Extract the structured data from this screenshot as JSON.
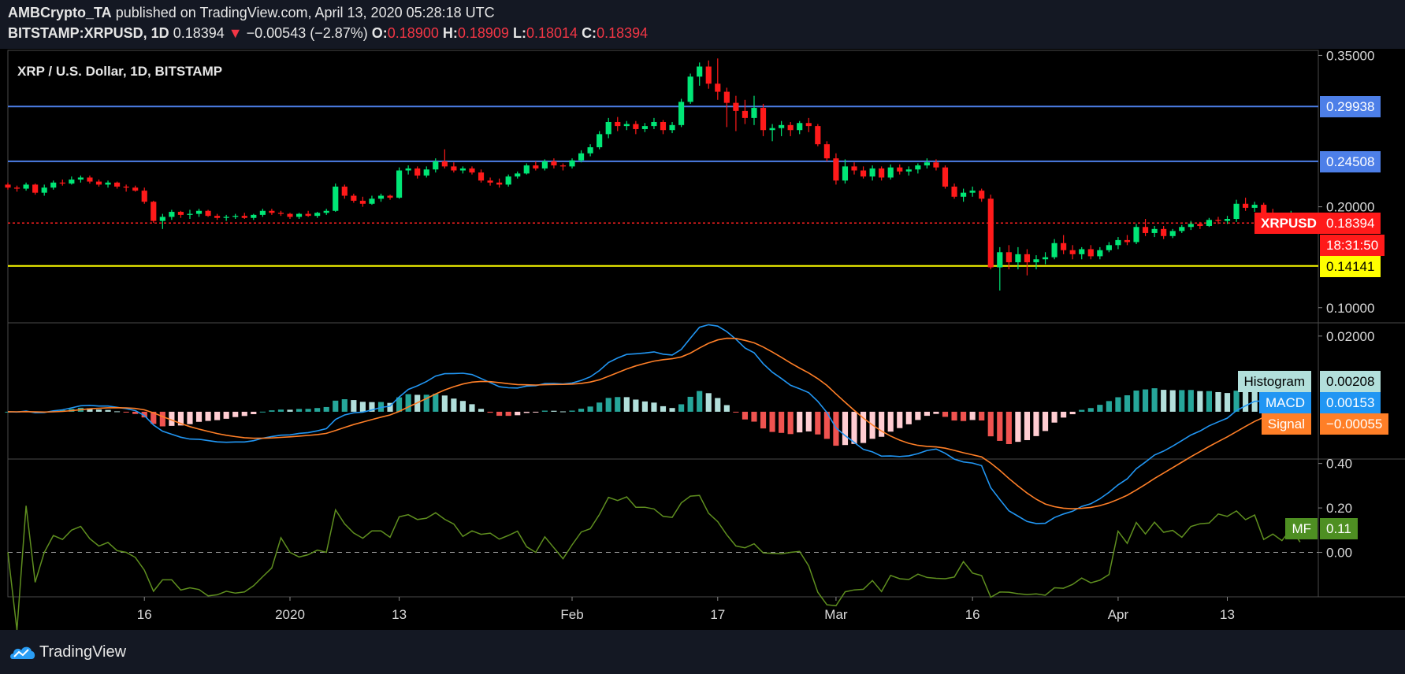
{
  "header": {
    "publisher": "AMBCrypto_TA",
    "published_text": "published on TradingView.com, April 13, 2020 05:28:18 UTC",
    "symbol": "BITSTAMP:XRPUSD, 1D",
    "last": "0.18394",
    "change_arrow": "▼",
    "change": "−0.00543 (−2.87%)",
    "o_label": "O:",
    "o": "0.18900",
    "h_label": "H:",
    "h": "0.18909",
    "l_label": "L:",
    "l": "0.18014",
    "c_label": "C:",
    "c": "0.18394"
  },
  "footer": {
    "brand": "TradingView",
    "logo_icon": "tradingview-cloud-icon"
  },
  "colors": {
    "background": "#000000",
    "up": "#00e676",
    "down": "#ff1a1a",
    "resistance": "#4d7fe8",
    "support": "#ffff00",
    "macd": "#2196f3",
    "signal": "#ff7f27",
    "hist_up_dark": "#26a69a",
    "hist_up_light": "#b2dfdb",
    "hist_down_dark": "#ef5350",
    "hist_down_light": "#ffcdd2",
    "mf_line": "#5f8f1f"
  },
  "chart_data": {
    "type": "candlestick",
    "title": "XRP / U.S. Dollar, 1D, BITSTAMP",
    "x_tick_labels": [
      "16",
      "2020",
      "13",
      "Feb",
      "17",
      "Mar",
      "16",
      "Apr",
      "13"
    ],
    "x_ticks": [
      "2019-12-16",
      "2020-01-01",
      "2020-01-13",
      "2020-02-01",
      "2020-02-17",
      "2020-03-01",
      "2020-03-16",
      "2020-04-01",
      "2020-04-13"
    ],
    "x_range": [
      "2019-12-01",
      "2020-04-23"
    ],
    "price_axis": {
      "ylim": [
        0.085,
        0.355
      ],
      "ticks": [
        "0.35000",
        "0.20000",
        "0.10000"
      ],
      "tick_values": [
        0.35,
        0.2,
        0.1
      ]
    },
    "horizontal_lines": [
      {
        "label": "0.29938",
        "value": 0.29938,
        "color": "resistance"
      },
      {
        "label": "0.24508",
        "value": 0.24508,
        "color": "resistance"
      },
      {
        "label": "0.14141",
        "value": 0.14141,
        "color": "support"
      }
    ],
    "last_price": {
      "symbol": "XRPUSD",
      "value": 0.18394,
      "label": "0.18394",
      "countdown": "18:31:50"
    },
    "candles_start_date": "2019-12-01",
    "ohlc": [
      [
        0.222,
        0.224,
        0.217,
        0.219
      ],
      [
        0.219,
        0.221,
        0.215,
        0.218
      ],
      [
        0.218,
        0.224,
        0.216,
        0.222
      ],
      [
        0.222,
        0.223,
        0.212,
        0.214
      ],
      [
        0.214,
        0.222,
        0.211,
        0.219
      ],
      [
        0.219,
        0.226,
        0.217,
        0.224
      ],
      [
        0.224,
        0.227,
        0.221,
        0.223
      ],
      [
        0.223,
        0.23,
        0.222,
        0.227
      ],
      [
        0.227,
        0.231,
        0.224,
        0.229
      ],
      [
        0.229,
        0.231,
        0.223,
        0.225
      ],
      [
        0.225,
        0.227,
        0.22,
        0.222
      ],
      [
        0.222,
        0.226,
        0.219,
        0.224
      ],
      [
        0.224,
        0.225,
        0.218,
        0.22
      ],
      [
        0.22,
        0.222,
        0.215,
        0.219
      ],
      [
        0.219,
        0.221,
        0.215,
        0.216
      ],
      [
        0.216,
        0.219,
        0.203,
        0.205
      ],
      [
        0.205,
        0.206,
        0.184,
        0.186
      ],
      [
        0.186,
        0.193,
        0.178,
        0.19
      ],
      [
        0.19,
        0.197,
        0.187,
        0.195
      ],
      [
        0.195,
        0.196,
        0.189,
        0.192
      ],
      [
        0.192,
        0.197,
        0.188,
        0.193
      ],
      [
        0.193,
        0.198,
        0.19,
        0.196
      ],
      [
        0.196,
        0.197,
        0.19,
        0.191
      ],
      [
        0.191,
        0.193,
        0.187,
        0.189
      ],
      [
        0.189,
        0.192,
        0.186,
        0.19
      ],
      [
        0.19,
        0.193,
        0.188,
        0.191
      ],
      [
        0.191,
        0.194,
        0.188,
        0.189
      ],
      [
        0.189,
        0.193,
        0.187,
        0.192
      ],
      [
        0.192,
        0.198,
        0.19,
        0.196
      ],
      [
        0.196,
        0.198,
        0.192,
        0.194
      ],
      [
        0.194,
        0.196,
        0.191,
        0.193
      ],
      [
        0.193,
        0.194,
        0.188,
        0.19
      ],
      [
        0.19,
        0.194,
        0.188,
        0.193
      ],
      [
        0.193,
        0.196,
        0.19,
        0.191
      ],
      [
        0.191,
        0.195,
        0.189,
        0.194
      ],
      [
        0.194,
        0.198,
        0.192,
        0.196
      ],
      [
        0.196,
        0.223,
        0.195,
        0.22
      ],
      [
        0.22,
        0.222,
        0.208,
        0.211
      ],
      [
        0.211,
        0.213,
        0.204,
        0.206
      ],
      [
        0.206,
        0.21,
        0.2,
        0.203
      ],
      [
        0.203,
        0.211,
        0.202,
        0.208
      ],
      [
        0.208,
        0.213,
        0.205,
        0.211
      ],
      [
        0.211,
        0.212,
        0.207,
        0.209
      ],
      [
        0.209,
        0.239,
        0.208,
        0.236
      ],
      [
        0.236,
        0.241,
        0.232,
        0.238
      ],
      [
        0.238,
        0.24,
        0.228,
        0.231
      ],
      [
        0.231,
        0.24,
        0.229,
        0.237
      ],
      [
        0.237,
        0.248,
        0.234,
        0.245
      ],
      [
        0.245,
        0.257,
        0.238,
        0.24
      ],
      [
        0.24,
        0.244,
        0.234,
        0.236
      ],
      [
        0.236,
        0.24,
        0.233,
        0.238
      ],
      [
        0.238,
        0.24,
        0.232,
        0.234
      ],
      [
        0.234,
        0.237,
        0.224,
        0.226
      ],
      [
        0.226,
        0.229,
        0.221,
        0.224
      ],
      [
        0.224,
        0.228,
        0.219,
        0.222
      ],
      [
        0.222,
        0.232,
        0.22,
        0.23
      ],
      [
        0.23,
        0.235,
        0.228,
        0.233
      ],
      [
        0.233,
        0.243,
        0.232,
        0.241
      ],
      [
        0.241,
        0.245,
        0.236,
        0.238
      ],
      [
        0.238,
        0.247,
        0.236,
        0.245
      ],
      [
        0.245,
        0.248,
        0.238,
        0.241
      ],
      [
        0.241,
        0.243,
        0.236,
        0.24
      ],
      [
        0.24,
        0.248,
        0.238,
        0.246
      ],
      [
        0.246,
        0.256,
        0.244,
        0.253
      ],
      [
        0.253,
        0.262,
        0.25,
        0.259
      ],
      [
        0.259,
        0.275,
        0.257,
        0.272
      ],
      [
        0.272,
        0.288,
        0.268,
        0.284
      ],
      [
        0.284,
        0.289,
        0.275,
        0.28
      ],
      [
        0.28,
        0.285,
        0.276,
        0.282
      ],
      [
        0.282,
        0.285,
        0.272,
        0.277
      ],
      [
        0.277,
        0.283,
        0.274,
        0.28
      ],
      [
        0.28,
        0.288,
        0.277,
        0.284
      ],
      [
        0.284,
        0.286,
        0.272,
        0.276
      ],
      [
        0.276,
        0.284,
        0.273,
        0.281
      ],
      [
        0.281,
        0.307,
        0.279,
        0.304
      ],
      [
        0.304,
        0.332,
        0.302,
        0.329
      ],
      [
        0.329,
        0.343,
        0.32,
        0.339
      ],
      [
        0.339,
        0.345,
        0.317,
        0.322
      ],
      [
        0.322,
        0.347,
        0.306,
        0.314
      ],
      [
        0.314,
        0.318,
        0.279,
        0.303
      ],
      [
        0.303,
        0.31,
        0.275,
        0.295
      ],
      [
        0.295,
        0.306,
        0.282,
        0.288
      ],
      [
        0.288,
        0.31,
        0.281,
        0.298
      ],
      [
        0.298,
        0.302,
        0.27,
        0.276
      ],
      [
        0.276,
        0.282,
        0.265,
        0.278
      ],
      [
        0.278,
        0.285,
        0.27,
        0.281
      ],
      [
        0.281,
        0.284,
        0.27,
        0.276
      ],
      [
        0.276,
        0.285,
        0.272,
        0.283
      ],
      [
        0.283,
        0.288,
        0.274,
        0.28
      ],
      [
        0.28,
        0.282,
        0.26,
        0.262
      ],
      [
        0.262,
        0.265,
        0.245,
        0.248
      ],
      [
        0.248,
        0.253,
        0.222,
        0.226
      ],
      [
        0.226,
        0.247,
        0.223,
        0.24
      ],
      [
        0.24,
        0.244,
        0.232,
        0.236
      ],
      [
        0.236,
        0.24,
        0.228,
        0.23
      ],
      [
        0.23,
        0.241,
        0.226,
        0.238
      ],
      [
        0.238,
        0.24,
        0.226,
        0.229
      ],
      [
        0.229,
        0.242,
        0.227,
        0.239
      ],
      [
        0.239,
        0.242,
        0.232,
        0.235
      ],
      [
        0.235,
        0.24,
        0.231,
        0.237
      ],
      [
        0.237,
        0.243,
        0.233,
        0.241
      ],
      [
        0.241,
        0.248,
        0.238,
        0.244
      ],
      [
        0.244,
        0.247,
        0.236,
        0.239
      ],
      [
        0.239,
        0.241,
        0.218,
        0.22
      ],
      [
        0.22,
        0.223,
        0.208,
        0.21
      ],
      [
        0.21,
        0.218,
        0.205,
        0.214
      ],
      [
        0.214,
        0.22,
        0.21,
        0.216
      ],
      [
        0.216,
        0.218,
        0.205,
        0.208
      ],
      [
        0.208,
        0.212,
        0.138,
        0.14
      ],
      [
        0.14,
        0.16,
        0.117,
        0.155
      ],
      [
        0.155,
        0.162,
        0.138,
        0.145
      ],
      [
        0.145,
        0.16,
        0.138,
        0.153
      ],
      [
        0.153,
        0.158,
        0.132,
        0.145
      ],
      [
        0.145,
        0.152,
        0.138,
        0.148
      ],
      [
        0.148,
        0.155,
        0.143,
        0.15
      ],
      [
        0.15,
        0.168,
        0.148,
        0.164
      ],
      [
        0.164,
        0.172,
        0.153,
        0.157
      ],
      [
        0.157,
        0.162,
        0.148,
        0.153
      ],
      [
        0.153,
        0.16,
        0.148,
        0.158
      ],
      [
        0.158,
        0.162,
        0.148,
        0.151
      ],
      [
        0.151,
        0.16,
        0.148,
        0.157
      ],
      [
        0.157,
        0.165,
        0.155,
        0.162
      ],
      [
        0.162,
        0.17,
        0.158,
        0.167
      ],
      [
        0.167,
        0.172,
        0.162,
        0.165
      ],
      [
        0.165,
        0.183,
        0.163,
        0.18
      ],
      [
        0.18,
        0.188,
        0.171,
        0.174
      ],
      [
        0.174,
        0.181,
        0.17,
        0.178
      ],
      [
        0.178,
        0.181,
        0.168,
        0.171
      ],
      [
        0.171,
        0.178,
        0.169,
        0.176
      ],
      [
        0.176,
        0.182,
        0.174,
        0.18
      ],
      [
        0.18,
        0.186,
        0.177,
        0.183
      ],
      [
        0.183,
        0.185,
        0.178,
        0.181
      ],
      [
        0.181,
        0.189,
        0.18,
        0.187
      ],
      [
        0.187,
        0.19,
        0.183,
        0.186
      ],
      [
        0.186,
        0.191,
        0.183,
        0.188
      ],
      [
        0.188,
        0.207,
        0.185,
        0.203
      ],
      [
        0.203,
        0.209,
        0.196,
        0.199
      ],
      [
        0.199,
        0.205,
        0.195,
        0.202
      ],
      [
        0.202,
        0.204,
        0.19,
        0.192
      ],
      [
        0.192,
        0.198,
        0.188,
        0.19
      ],
      [
        0.19,
        0.194,
        0.186,
        0.188
      ],
      [
        0.188,
        0.196,
        0.187,
        0.189
      ],
      [
        0.189,
        0.189,
        0.18,
        0.184
      ]
    ],
    "macd_panel": {
      "ylim": [
        -0.0125,
        0.0235
      ],
      "ticks": [
        "0.02000"
      ],
      "tick_values": [
        0.02
      ],
      "legend": [
        {
          "name": "Histogram",
          "value": "0.00208"
        },
        {
          "name": "MACD",
          "value": "0.00153"
        },
        {
          "name": "Signal",
          "value": "−0.00055"
        }
      ]
    },
    "mf_panel": {
      "ylim": [
        -0.2,
        0.42
      ],
      "ticks": [
        "0.40",
        "0.20",
        "0.00"
      ],
      "tick_values": [
        0.4,
        0.2,
        0.0
      ],
      "zero_line": true,
      "label": "MF",
      "value": "0.11"
    }
  }
}
